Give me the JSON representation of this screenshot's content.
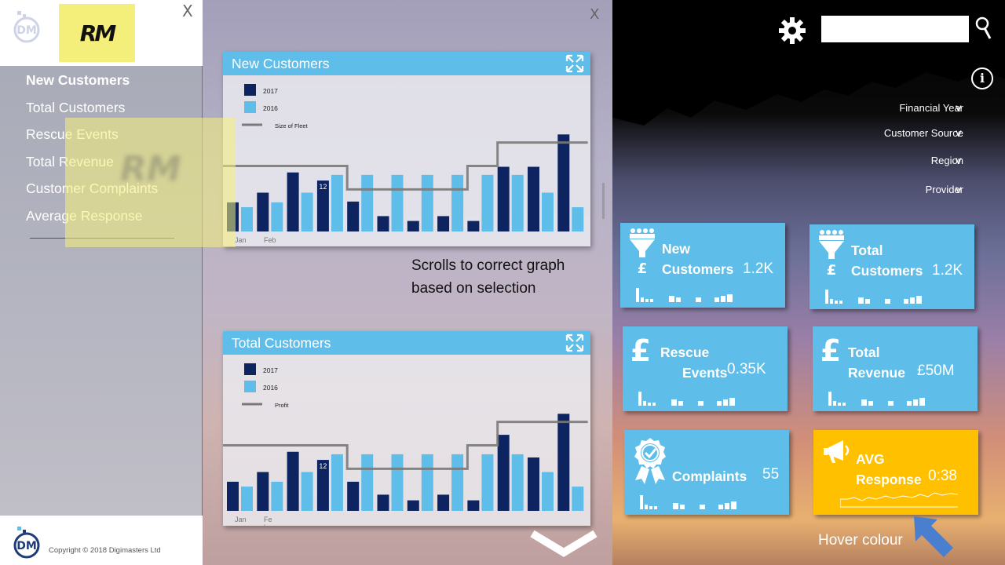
{
  "menu": {
    "badge": "RM",
    "close_label": "X",
    "items": [
      {
        "label": "New Customers",
        "active": true
      },
      {
        "label": "Total Customers",
        "active": false
      },
      {
        "label": "Rescue Events",
        "active": false
      },
      {
        "label": "Total Revenue",
        "active": false
      },
      {
        "label": "Customer Complaints",
        "active": false
      },
      {
        "label": "Average Response",
        "active": false
      }
    ],
    "copyright": "Copyright © 2018 Digimasters Ltd"
  },
  "center": {
    "close_label": "X",
    "note": "Scrolls to correct graph based on selection"
  },
  "chart_data": [
    {
      "type": "bar",
      "title": "New Customers",
      "legend": [
        "2017",
        "2016",
        "Size of Fleet"
      ],
      "x_tick_labels": [
        "Jan",
        "Feb"
      ],
      "annotation": "12",
      "series": [
        {
          "name": "2017",
          "values": [
            36,
            48,
            73,
            63,
            37,
            19,
            13,
            19,
            13,
            80,
            80,
            120
          ]
        },
        {
          "name": "2016",
          "values": [
            30,
            36,
            48,
            70,
            70,
            70,
            70,
            70,
            70,
            70,
            48,
            30
          ]
        },
        {
          "name": "Size of Fleet",
          "values": [
            81,
            81,
            81,
            81,
            52,
            52,
            52,
            52,
            81,
            110,
            110,
            110
          ]
        }
      ],
      "ylim": [
        0,
        130
      ]
    },
    {
      "type": "bar",
      "title": "Total Customers",
      "legend": [
        "2017",
        "2016",
        "Profit"
      ],
      "x_tick_labels": [
        "Jan",
        "Fe\nb"
      ],
      "annotation": "12",
      "series": [
        {
          "name": "2017",
          "values": [
            36,
            48,
            73,
            63,
            36,
            20,
            13,
            20,
            13,
            94,
            66,
            120
          ]
        },
        {
          "name": "2016",
          "values": [
            30,
            36,
            48,
            70,
            70,
            70,
            70,
            70,
            70,
            70,
            48,
            30
          ]
        },
        {
          "name": "Profit",
          "values": [
            81,
            81,
            81,
            81,
            52,
            52,
            52,
            52,
            81,
            110,
            110,
            110
          ]
        }
      ],
      "ylim": [
        0,
        130
      ]
    }
  ],
  "filters": [
    {
      "label": "Financial Year",
      "chevron": "v"
    },
    {
      "label": "Customer Source",
      "chevron": "v"
    },
    {
      "label": "Region",
      "chevron": "v"
    },
    {
      "label": "Provider",
      "chevron": "v"
    }
  ],
  "search": {
    "placeholder": ""
  },
  "info_label": "i",
  "tiles": [
    {
      "line1": "New",
      "line2": "Customers",
      "value": "1.2K",
      "icon": "funnel-people-pound-icon",
      "color": "#5fbde9"
    },
    {
      "line1": "Total",
      "line2": "Customers",
      "value": "1.2K",
      "icon": "funnel-people-pound-icon",
      "color": "#5fbde9"
    },
    {
      "line1": "Rescue",
      "line2": "Events",
      "value": "0.35K",
      "icon": "pound-icon",
      "color": "#5fbde9"
    },
    {
      "line1": "Total",
      "line2": "Revenue",
      "value": "£50M",
      "icon": "pound-icon",
      "color": "#5fbde9"
    },
    {
      "line1": "",
      "line2": "Complaints",
      "value": "55",
      "icon": "award-ribbon-icon",
      "color": "#5fbde9"
    },
    {
      "line1": "AVG",
      "line2": "Response",
      "value": "0:38",
      "icon": "megaphone-icon",
      "color": "#ffc000"
    }
  ],
  "hover_label": "Hover colour"
}
